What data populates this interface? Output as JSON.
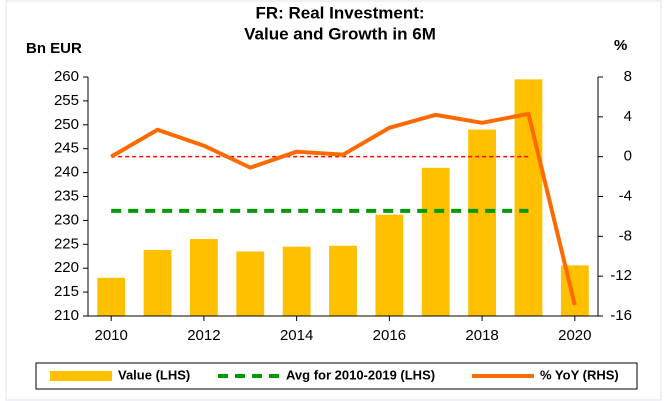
{
  "chart_data": {
    "type": "bar",
    "title": [
      "FR: Real Investment:",
      "Value and Growth in 6M"
    ],
    "y_label": "Bn EUR",
    "y2_label": "%",
    "x": [
      2010,
      2011,
      2012,
      2013,
      2014,
      2015,
      2016,
      2017,
      2018,
      2019,
      2020
    ],
    "xlim": [
      2009.5,
      2020.5
    ],
    "xticks": [
      2010,
      2012,
      2014,
      2016,
      2018,
      2020
    ],
    "ylim": [
      210,
      260
    ],
    "yticks": [
      210,
      215,
      220,
      225,
      230,
      235,
      240,
      245,
      250,
      255,
      260
    ],
    "y2lim": [
      -16,
      8
    ],
    "y2ticks": [
      -16,
      -12,
      -8,
      -4,
      0,
      4,
      8
    ],
    "series": [
      {
        "name": "Value (LHS)",
        "type": "bar",
        "color": "#ffc000",
        "values": [
          218,
          223.8,
          226.1,
          223.5,
          224.5,
          224.7,
          231.2,
          241,
          249,
          259.5,
          220.6
        ]
      },
      {
        "name": "Avg for 2010-2019 (LHS)",
        "type": "line",
        "dashed": true,
        "color": "#009900",
        "values": [
          232,
          232,
          232,
          232,
          232,
          232,
          232,
          232,
          232,
          232,
          null
        ]
      },
      {
        "name": "% YoY (RHS)",
        "type": "line",
        "axis": "y2",
        "color": "#ff6a00",
        "values": [
          0,
          2.7,
          1.1,
          -1.1,
          0.5,
          0.2,
          2.9,
          4.2,
          3.4,
          4.3,
          -14.9
        ]
      }
    ],
    "reference_lines": [
      {
        "axis": "y2",
        "value": 0,
        "from": 2010,
        "to": 2019,
        "color": "#ff0000"
      }
    ]
  }
}
